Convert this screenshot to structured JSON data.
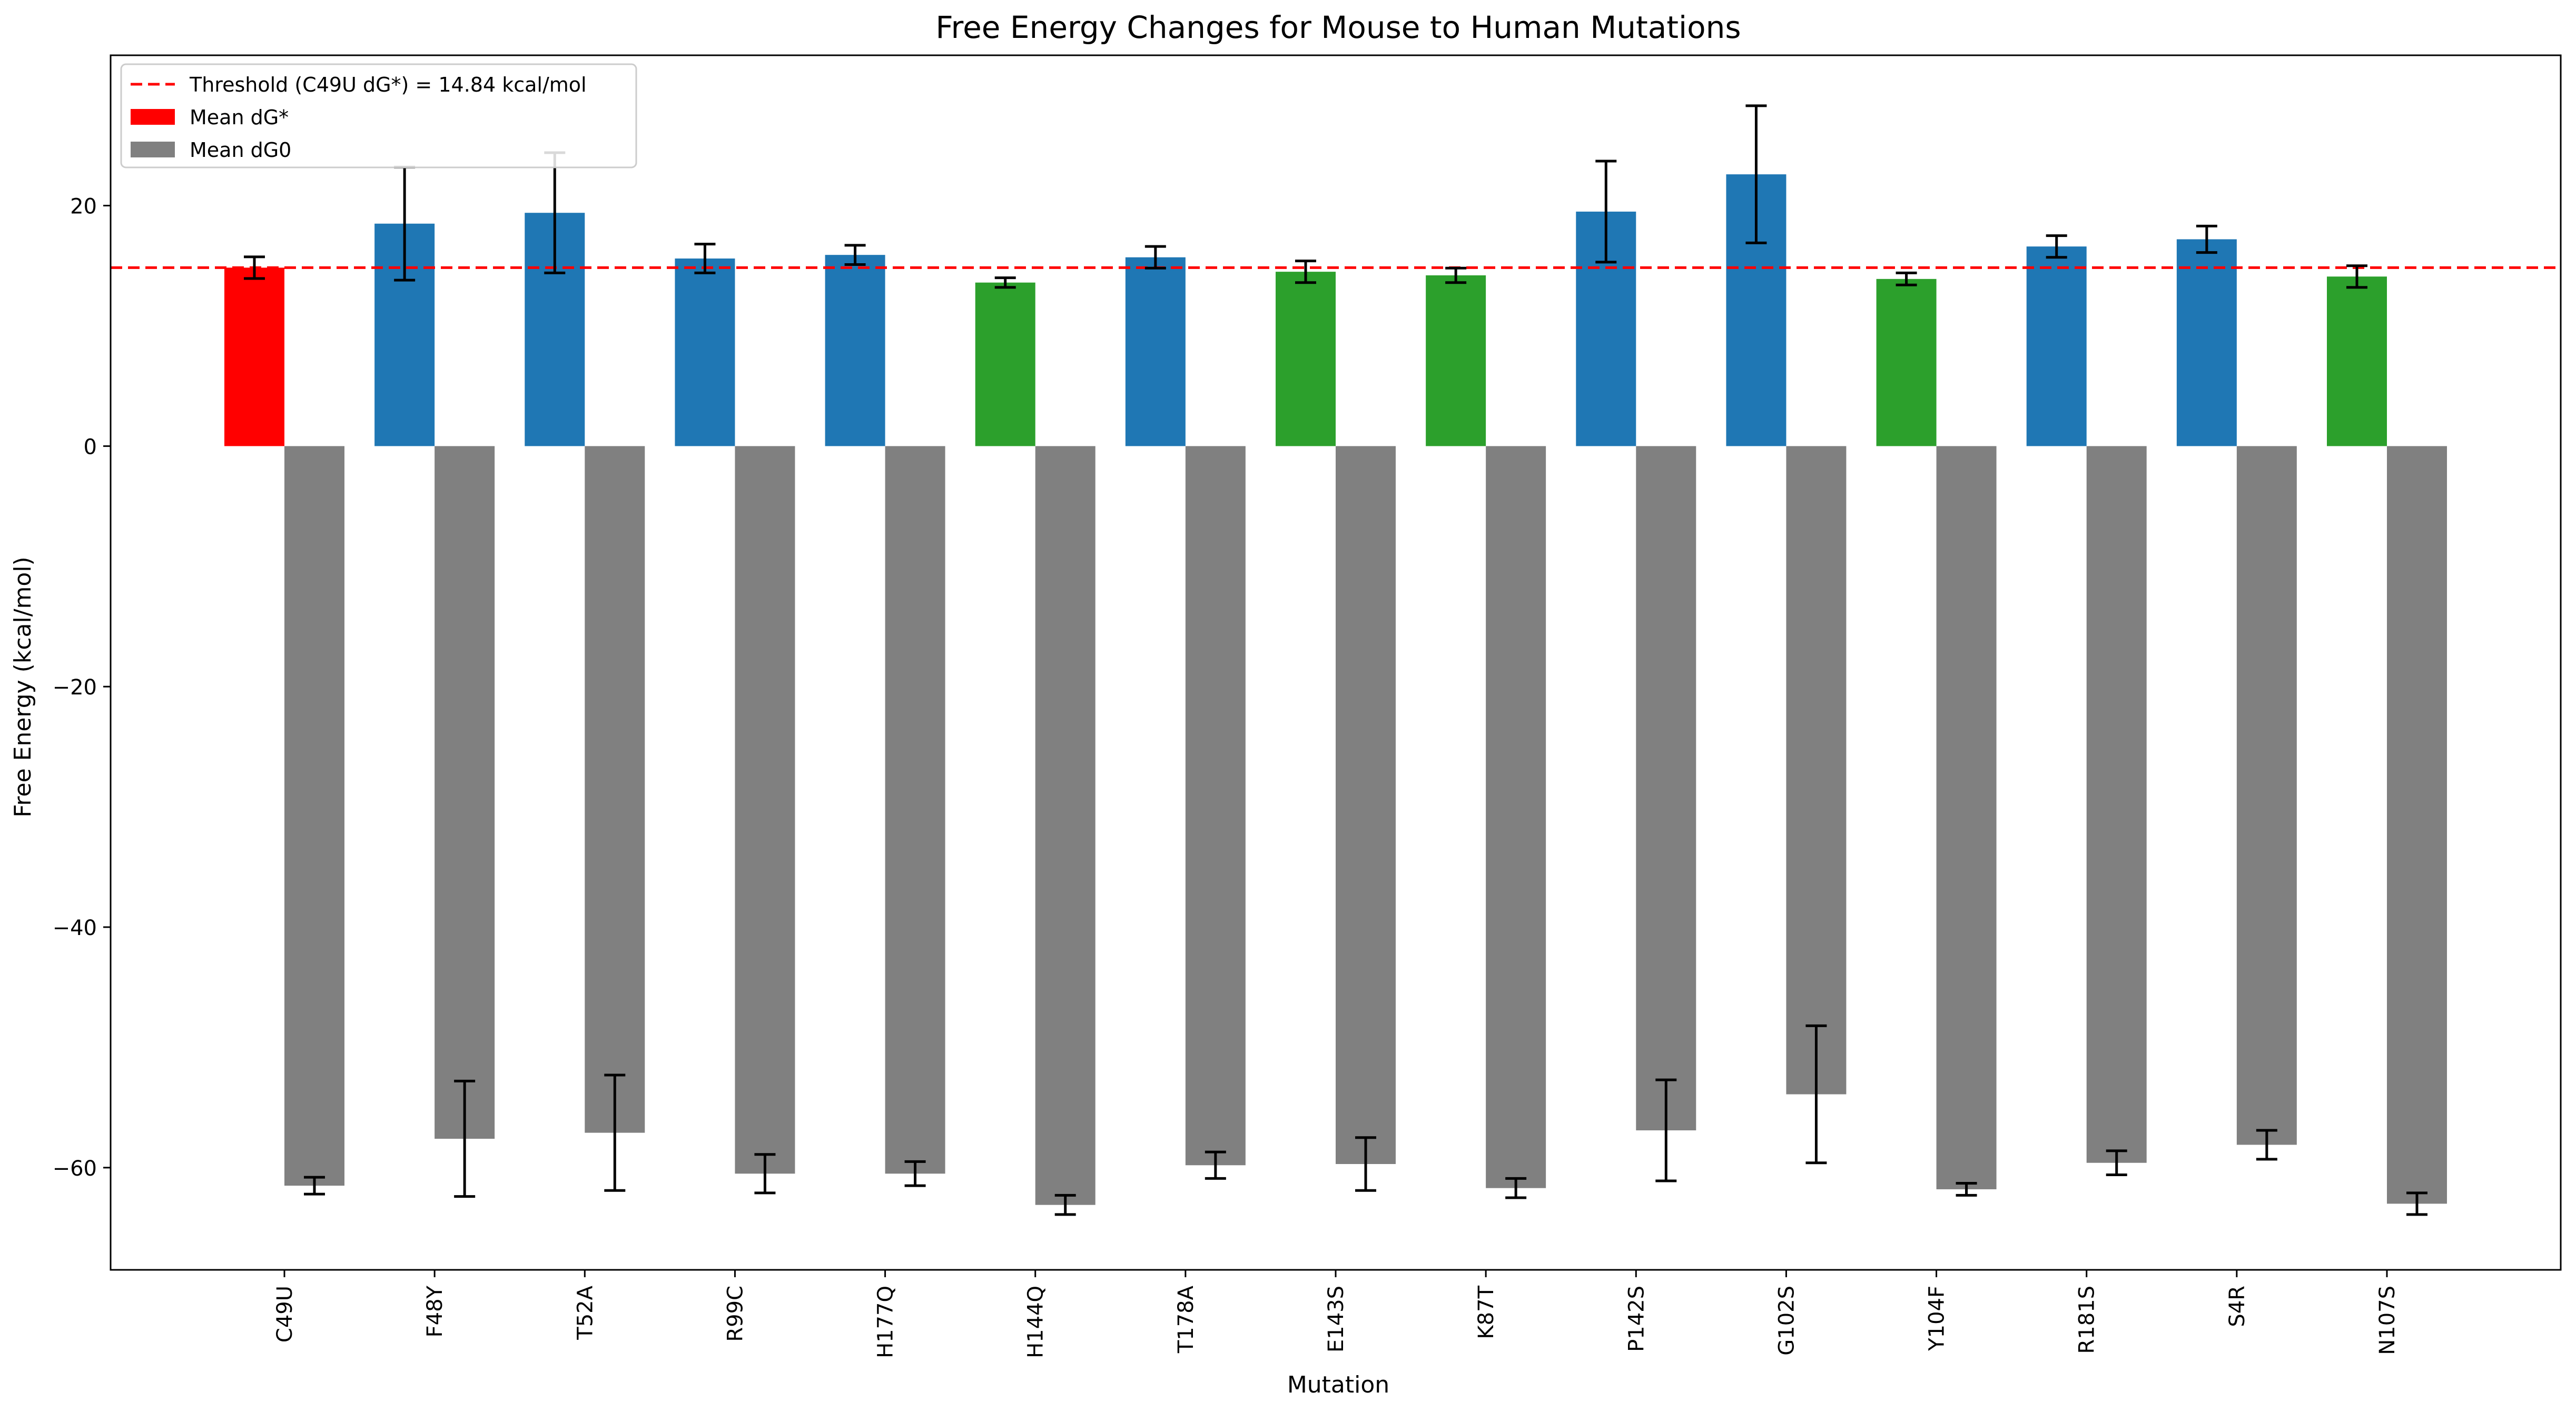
{
  "chart_data": {
    "type": "bar",
    "title": "Free Energy Changes for Mouse to Human Mutations",
    "xlabel": "Mutation",
    "ylabel": "Free Energy (kcal/mol)",
    "ylim": [
      -68.5,
      32.5
    ],
    "yticks": [
      20,
      0,
      -20,
      -40,
      -60
    ],
    "ytick_labels": [
      "20",
      "0",
      "−20",
      "−40",
      "−60"
    ],
    "grid": false,
    "legend_position": "top-left",
    "categories": [
      "C49U",
      "F48Y",
      "T52A",
      "R99C",
      "H177Q",
      "H144Q",
      "T178A",
      "E143S",
      "K87T",
      "P142S",
      "G102S",
      "Y104F",
      "R181S",
      "S4R",
      "N107S"
    ],
    "series": [
      {
        "name": "Mean dG*",
        "legend_color": "#ff0000",
        "values": [
          14.84,
          18.5,
          19.4,
          15.6,
          15.9,
          13.6,
          15.7,
          14.5,
          14.2,
          19.5,
          22.6,
          13.9,
          16.6,
          17.2,
          14.1
        ],
        "errors": [
          0.9,
          4.7,
          5.0,
          1.2,
          0.8,
          0.4,
          0.9,
          0.9,
          0.6,
          4.2,
          5.7,
          0.5,
          0.9,
          1.1,
          0.9
        ],
        "colors": [
          "#ff0000",
          "#1f77b4",
          "#1f77b4",
          "#1f77b4",
          "#1f77b4",
          "#2ca02c",
          "#1f77b4",
          "#2ca02c",
          "#2ca02c",
          "#1f77b4",
          "#1f77b4",
          "#2ca02c",
          "#1f77b4",
          "#1f77b4",
          "#2ca02c"
        ]
      },
      {
        "name": "Mean dG0",
        "legend_color": "#808080",
        "values": [
          -61.5,
          -57.6,
          -57.1,
          -60.5,
          -60.5,
          -63.1,
          -59.8,
          -59.7,
          -61.7,
          -56.9,
          -53.9,
          -61.8,
          -59.6,
          -58.1,
          -63.0
        ],
        "errors": [
          0.7,
          4.8,
          4.8,
          1.6,
          1.0,
          0.8,
          1.1,
          2.2,
          0.8,
          4.2,
          5.7,
          0.5,
          1.0,
          1.2,
          0.9
        ],
        "colors": [
          "#808080",
          "#808080",
          "#808080",
          "#808080",
          "#808080",
          "#808080",
          "#808080",
          "#808080",
          "#808080",
          "#808080",
          "#808080",
          "#808080",
          "#808080",
          "#808080",
          "#808080"
        ]
      }
    ],
    "threshold": {
      "value": 14.84,
      "label": "Threshold (C49U dG*) = 14.84 kcal/mol",
      "color": "#ff0000"
    }
  }
}
